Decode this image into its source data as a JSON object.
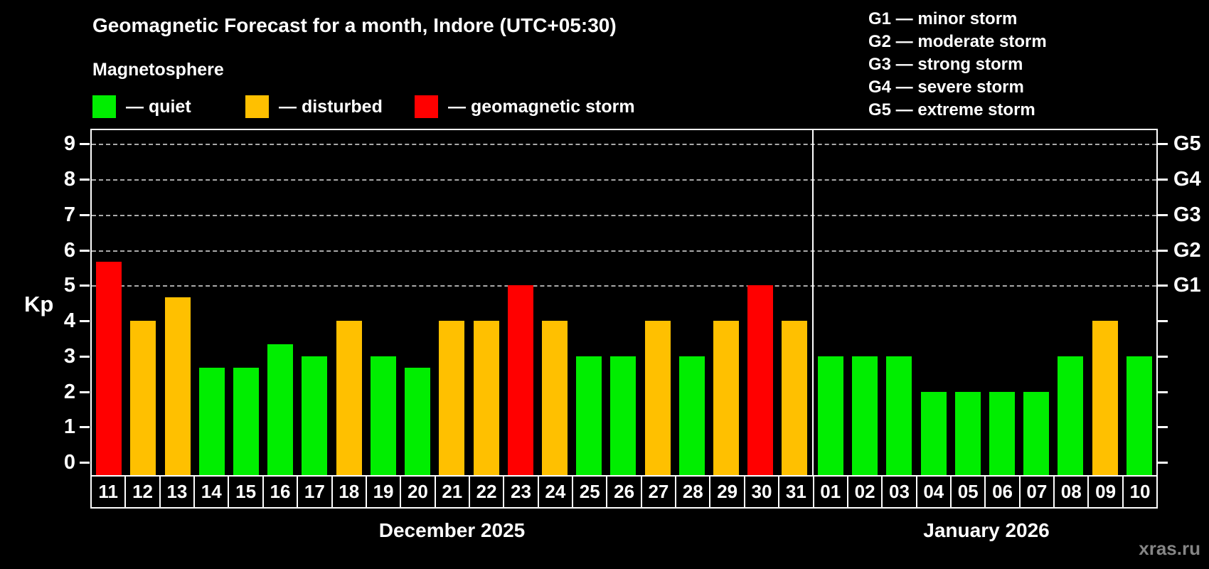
{
  "page": {
    "title": "Geomagnetic Forecast for a month, Indore (UTC+05:30)",
    "subtitle": "Magnetosphere",
    "watermark": "xras.ru"
  },
  "colors": {
    "quiet": "#00ee00",
    "disturbed": "#ffc000",
    "storm": "#ff0000",
    "background": "#000000",
    "text": "#ffffff",
    "grid": "#aaaaaa",
    "watermark": "#858585"
  },
  "legend": {
    "items": [
      {
        "status": "quiet",
        "label": "— quiet"
      },
      {
        "status": "disturbed",
        "label": "— disturbed"
      },
      {
        "status": "storm",
        "label": "— geomagnetic storm"
      }
    ]
  },
  "g_scale_legend": [
    "G1 — minor storm",
    "G2 — moderate storm",
    "G3 — strong storm",
    "G4 — severe storm",
    "G5 — extreme storm"
  ],
  "chart_data": {
    "type": "bar",
    "title": "Geomagnetic Forecast for a month, Indore (UTC+05:30)",
    "subtitle": "Magnetosphere",
    "ylabel": "Kp",
    "ylim": [
      0,
      9
    ],
    "yticks": [
      0,
      1,
      2,
      3,
      4,
      5,
      6,
      7,
      8,
      9
    ],
    "gridlines_at": [
      5,
      6,
      7,
      8,
      9
    ],
    "grid": "dashed horizontal at storm levels only",
    "right_axis_labels": [
      {
        "value": 5,
        "label": "G1"
      },
      {
        "value": 6,
        "label": "G2"
      },
      {
        "value": 7,
        "label": "G3"
      },
      {
        "value": 8,
        "label": "G4"
      },
      {
        "value": 9,
        "label": "G5"
      }
    ],
    "groups": [
      {
        "label": "December 2025",
        "days": [
          {
            "day": "11",
            "kp": 5.67,
            "status": "storm"
          },
          {
            "day": "12",
            "kp": 4.0,
            "status": "disturbed"
          },
          {
            "day": "13",
            "kp": 4.67,
            "status": "disturbed"
          },
          {
            "day": "14",
            "kp": 2.67,
            "status": "quiet"
          },
          {
            "day": "15",
            "kp": 2.67,
            "status": "quiet"
          },
          {
            "day": "16",
            "kp": 3.33,
            "status": "quiet"
          },
          {
            "day": "17",
            "kp": 3.0,
            "status": "quiet"
          },
          {
            "day": "18",
            "kp": 4.0,
            "status": "disturbed"
          },
          {
            "day": "19",
            "kp": 3.0,
            "status": "quiet"
          },
          {
            "day": "20",
            "kp": 2.67,
            "status": "quiet"
          },
          {
            "day": "21",
            "kp": 4.0,
            "status": "disturbed"
          },
          {
            "day": "22",
            "kp": 4.0,
            "status": "disturbed"
          },
          {
            "day": "23",
            "kp": 5.0,
            "status": "storm"
          },
          {
            "day": "24",
            "kp": 4.0,
            "status": "disturbed"
          },
          {
            "day": "25",
            "kp": 3.0,
            "status": "quiet"
          },
          {
            "day": "26",
            "kp": 3.0,
            "status": "quiet"
          },
          {
            "day": "27",
            "kp": 4.0,
            "status": "disturbed"
          },
          {
            "day": "28",
            "kp": 3.0,
            "status": "quiet"
          },
          {
            "day": "29",
            "kp": 4.0,
            "status": "disturbed"
          },
          {
            "day": "30",
            "kp": 5.0,
            "status": "storm"
          },
          {
            "day": "31",
            "kp": 4.0,
            "status": "disturbed"
          }
        ]
      },
      {
        "label": "January 2026",
        "days": [
          {
            "day": "01",
            "kp": 3.0,
            "status": "quiet"
          },
          {
            "day": "02",
            "kp": 3.0,
            "status": "quiet"
          },
          {
            "day": "03",
            "kp": 3.0,
            "status": "quiet"
          },
          {
            "day": "04",
            "kp": 2.0,
            "status": "quiet"
          },
          {
            "day": "05",
            "kp": 2.0,
            "status": "quiet"
          },
          {
            "day": "06",
            "kp": 2.0,
            "status": "quiet"
          },
          {
            "day": "07",
            "kp": 2.0,
            "status": "quiet"
          },
          {
            "day": "08",
            "kp": 3.0,
            "status": "quiet"
          },
          {
            "day": "09",
            "kp": 4.0,
            "status": "disturbed"
          },
          {
            "day": "10",
            "kp": 3.0,
            "status": "quiet"
          }
        ]
      }
    ]
  }
}
